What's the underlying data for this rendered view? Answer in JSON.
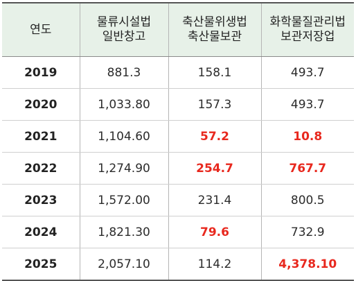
{
  "table": {
    "headers": [
      {
        "lines": [
          "연도"
        ]
      },
      {
        "lines": [
          "물류시설법",
          "일반창고"
        ]
      },
      {
        "lines": [
          "축산물위생법",
          "축산물보관"
        ]
      },
      {
        "lines": [
          "화학물질관리법",
          "보관저장업"
        ]
      }
    ],
    "rows": [
      {
        "year": "2019",
        "values": [
          "881.3",
          "158.1",
          "493.7"
        ],
        "highlight": [
          false,
          false,
          false
        ]
      },
      {
        "year": "2020",
        "values": [
          "1,033.80",
          "157.3",
          "493.7"
        ],
        "highlight": [
          false,
          false,
          false
        ]
      },
      {
        "year": "2021",
        "values": [
          "1,104.60",
          "57.2",
          "10.8"
        ],
        "highlight": [
          false,
          true,
          true
        ]
      },
      {
        "year": "2022",
        "values": [
          "1,274.90",
          "254.7",
          "767.7"
        ],
        "highlight": [
          false,
          true,
          true
        ]
      },
      {
        "year": "2023",
        "values": [
          "1,572.00",
          "231.4",
          "800.5"
        ],
        "highlight": [
          false,
          false,
          false
        ]
      },
      {
        "year": "2024",
        "values": [
          "1,821.30",
          "79.6",
          "732.9"
        ],
        "highlight": [
          false,
          true,
          false
        ]
      },
      {
        "year": "2025",
        "values": [
          "2,057.10",
          "114.2",
          "4,378.10"
        ],
        "highlight": [
          false,
          false,
          true
        ]
      }
    ]
  },
  "colors": {
    "header_background": "#e7f1e8",
    "highlight_text": "#e8281e",
    "text": "#2b2b2b"
  }
}
